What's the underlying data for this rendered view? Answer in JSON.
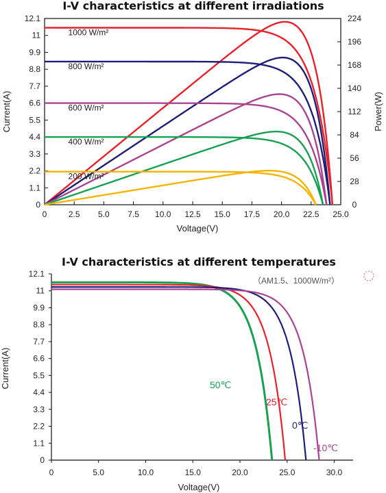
{
  "chart_data": [
    {
      "type": "line",
      "title": "I-V characteristics at different irradiations",
      "xlabel": "Voltage(V)",
      "ylabel": "Current(A)",
      "y2label": "Power(W)",
      "xlim": [
        0,
        25
      ],
      "ylim": [
        0,
        12.1
      ],
      "y2lim": [
        0,
        224
      ],
      "xticks": [
        "0",
        "2.5",
        "5.0",
        "7.5",
        "10.0",
        "12.5",
        "15.0",
        "17.5",
        "20.0",
        "22.5",
        "25.0"
      ],
      "yticks": [
        "0",
        "1.1",
        "2.2",
        "3.3",
        "4.4",
        "5.5",
        "6.6",
        "7.7",
        "8.8",
        "9.9",
        "11",
        "12.1"
      ],
      "y2ticks": [
        "0",
        "28",
        "56",
        "84",
        "112",
        "140",
        "168",
        "196",
        "224"
      ],
      "series": [
        {
          "name": "1000 W/m²",
          "color": "#e8202a",
          "isc": 11.5,
          "voc": 24.3,
          "pmax": 220,
          "vmp": 19.9
        },
        {
          "name": "800 W/m²",
          "color": "#1d1d78",
          "isc": 9.3,
          "voc": 24.1,
          "pmax": 177,
          "vmp": 19.9
        },
        {
          "name": "600 W/m²",
          "color": "#a8448f",
          "isc": 6.6,
          "voc": 23.8,
          "pmax": 133,
          "vmp": 19.8
        },
        {
          "name": "400 W/m²",
          "color": "#17a052",
          "isc": 4.4,
          "voc": 23.5,
          "pmax": 88,
          "vmp": 19.7
        },
        {
          "name": "200 W/m²",
          "color": "#f5b400",
          "isc": 2.15,
          "voc": 22.9,
          "pmax": 41,
          "vmp": 19.6
        }
      ]
    },
    {
      "type": "line",
      "title": "I-V characteristics at different temperatures",
      "subtitle": "（AM1.5、1000W/m²）",
      "xlabel": "Voltage(V)",
      "ylabel": "Current(A)",
      "xlim": [
        0,
        32
      ],
      "ylim": [
        0,
        12.1
      ],
      "xticks": [
        "0",
        "5.0",
        "10.0",
        "15.0",
        "20.0",
        "25.0",
        "30.0"
      ],
      "yticks": [
        "0",
        "1.1",
        "2.2",
        "3.3",
        "4.4",
        "5.5",
        "6.6",
        "7.7",
        "8.8",
        "9.9",
        "11",
        "12.1"
      ],
      "series": [
        {
          "name": "50℃",
          "color": "#17a052",
          "isc": 11.55,
          "voc": 23.4
        },
        {
          "name": "25℃",
          "color": "#e8202a",
          "isc": 11.4,
          "voc": 24.8
        },
        {
          "name": "0℃",
          "color": "#1d1d78",
          "isc": 11.25,
          "voc": 27.0
        },
        {
          "name": "-10℃",
          "color": "#a8448f",
          "isc": 11.1,
          "voc": 28.4
        }
      ]
    }
  ],
  "decor": {
    "marker_color": "#e06060"
  }
}
